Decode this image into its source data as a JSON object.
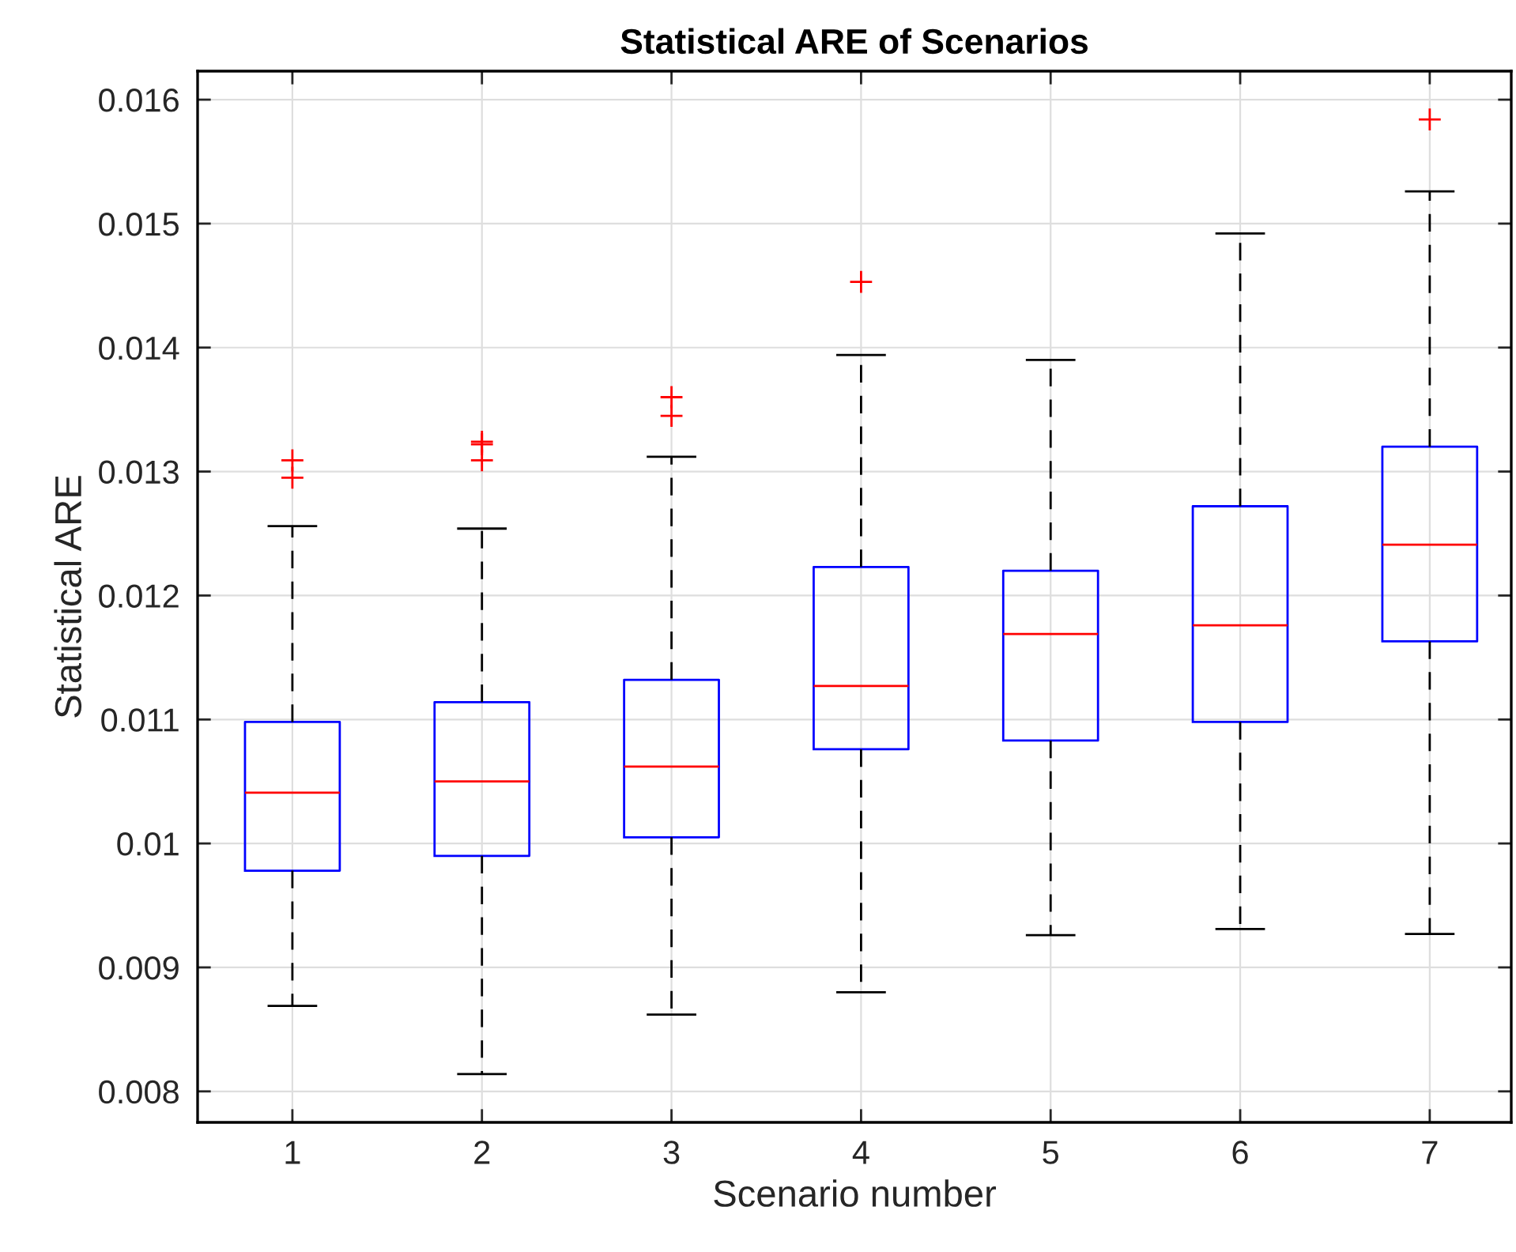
{
  "chart_data": {
    "type": "box",
    "title": "Statistical ARE of Scenarios",
    "xlabel": "Scenario number",
    "ylabel": "Statistical ARE",
    "categories": [
      "1",
      "2",
      "3",
      "4",
      "5",
      "6",
      "7"
    ],
    "boxes": [
      {
        "low": 0.00869,
        "q1": 0.00978,
        "median": 0.01041,
        "q3": 0.01098,
        "high": 0.01256,
        "outliers": [
          0.01309,
          0.01295
        ]
      },
      {
        "low": 0.00814,
        "q1": 0.0099,
        "median": 0.0105,
        "q3": 0.01114,
        "high": 0.01254,
        "outliers": [
          0.01324,
          0.01322,
          0.01309
        ]
      },
      {
        "low": 0.00862,
        "q1": 0.01005,
        "median": 0.01062,
        "q3": 0.01132,
        "high": 0.01312,
        "outliers": [
          0.0136,
          0.01345
        ]
      },
      {
        "low": 0.0088,
        "q1": 0.01076,
        "median": 0.01127,
        "q3": 0.01223,
        "high": 0.01394,
        "outliers": [
          0.01453
        ]
      },
      {
        "low": 0.00926,
        "q1": 0.01083,
        "median": 0.01169,
        "q3": 0.0122,
        "high": 0.0139
      },
      {
        "low": 0.00931,
        "q1": 0.01098,
        "median": 0.01176,
        "q3": 0.01272,
        "high": 0.01492
      },
      {
        "low": 0.00927,
        "q1": 0.01163,
        "median": 0.01241,
        "q3": 0.0132,
        "high": 0.01526,
        "outliers": [
          0.01584
        ]
      }
    ],
    "ylim": [
      0.00775,
      0.01623
    ],
    "yticks": [
      0.008,
      0.009,
      0.01,
      0.011,
      0.012,
      0.013,
      0.014,
      0.015,
      0.016
    ],
    "grid": true
  }
}
